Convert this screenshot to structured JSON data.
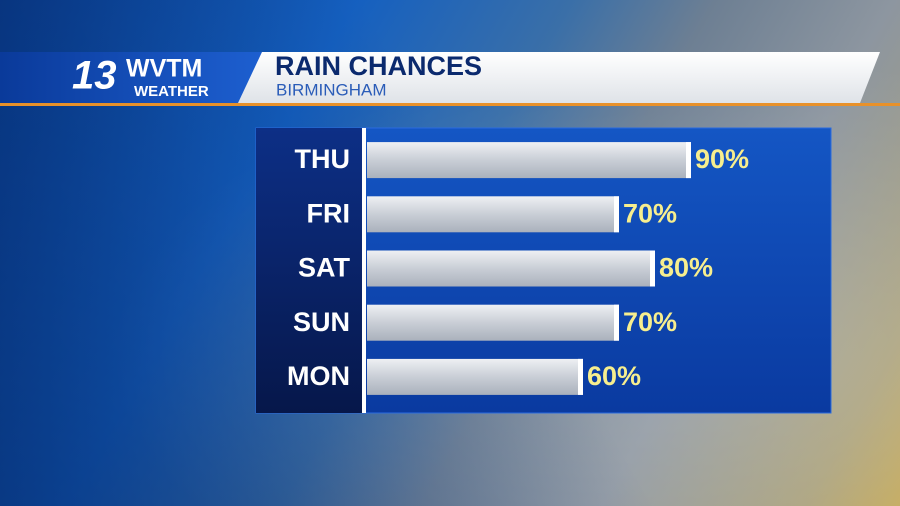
{
  "logo": {
    "number": "13",
    "name": "WVTM",
    "tagline": "WEATHER"
  },
  "chart_data": {
    "type": "bar",
    "orientation": "horizontal",
    "title": "RAIN CHANCES",
    "subtitle": "BIRMINGHAM",
    "categories": [
      "THU",
      "FRI",
      "SAT",
      "SUN",
      "MON"
    ],
    "values": [
      90,
      70,
      80,
      70,
      60
    ],
    "value_labels": [
      "90%",
      "70%",
      "80%",
      "70%",
      "60%"
    ],
    "xlim": [
      0,
      100
    ],
    "color": "#c9ced6",
    "label_color": "#f7ee8e"
  }
}
